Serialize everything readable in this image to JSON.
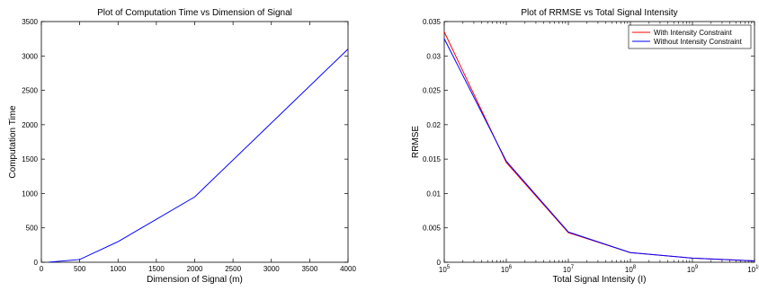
{
  "chart_data": [
    {
      "type": "line",
      "title": "Plot of Computation Time vs Dimension of Signal",
      "xlabel": "Dimension of Signal (m)",
      "ylabel": "Computation Time",
      "xlim": [
        0,
        4000
      ],
      "ylim": [
        0,
        3500
      ],
      "xscale": "linear",
      "grid": false,
      "xticks": [
        0,
        500,
        1000,
        1500,
        2000,
        2500,
        3000,
        3500,
        4000
      ],
      "yticks": [
        0,
        500,
        1000,
        1500,
        2000,
        2500,
        3000,
        3500
      ],
      "series": [
        {
          "color": "#0000ff",
          "x": [
            100,
            500,
            1000,
            2000,
            4000
          ],
          "y": [
            2,
            40,
            300,
            950,
            3100
          ]
        }
      ]
    },
    {
      "type": "line",
      "title": "Plot of RRMSE vs Total Signal Intensity",
      "xlabel": "Total Signal Intensity (I)",
      "ylabel": "RRMSE",
      "xlim": [
        100000,
        10000000000
      ],
      "ylim": [
        0,
        0.035
      ],
      "xscale": "log",
      "grid": false,
      "legend_position": "top-right",
      "xticks": [
        {
          "base": "10",
          "exp": "5"
        },
        {
          "base": "10",
          "exp": "6"
        },
        {
          "base": "10",
          "exp": "7"
        },
        {
          "base": "10",
          "exp": "8"
        },
        {
          "base": "10",
          "exp": "9"
        },
        {
          "base": "10",
          "exp": "10"
        }
      ],
      "yticks": [
        0,
        0.005,
        0.01,
        0.015,
        0.02,
        0.025,
        0.03,
        0.035
      ],
      "series": [
        {
          "name": "With Intensity Constraint",
          "color": "#ff0000",
          "x": [
            100000,
            1000000,
            10000000,
            100000000,
            1000000000,
            10000000000
          ],
          "y": [
            0.0335,
            0.0145,
            0.0043,
            0.0014,
            0.0006,
            0.0002
          ]
        },
        {
          "name": "Without Intensity Constraint",
          "color": "#0000ff",
          "x": [
            100000,
            1000000,
            10000000,
            100000000,
            1000000000,
            10000000000
          ],
          "y": [
            0.0325,
            0.0147,
            0.0044,
            0.0014,
            0.0006,
            0.0002
          ]
        }
      ]
    }
  ]
}
